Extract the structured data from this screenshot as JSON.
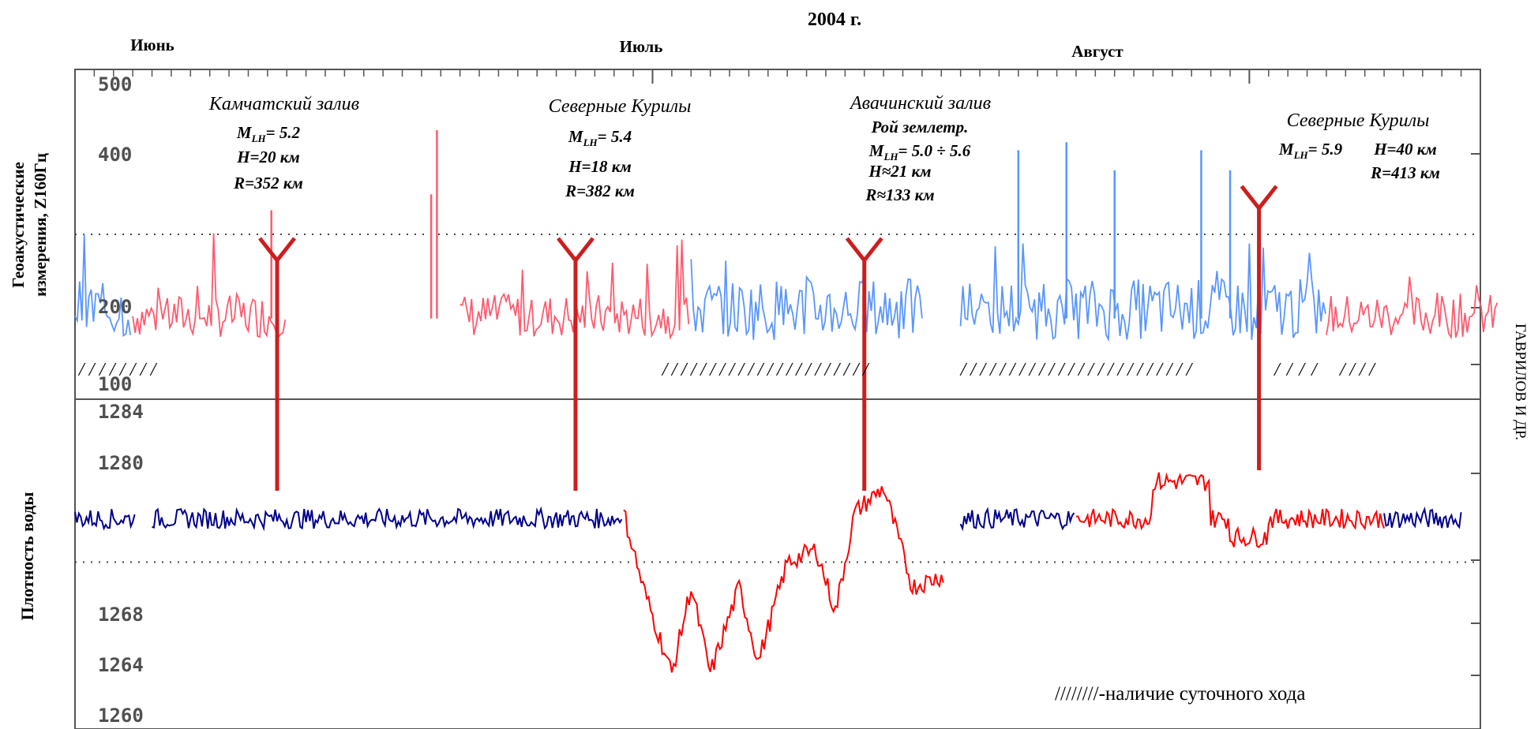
{
  "chart_data": {
    "type": "line",
    "title": "2004 г.",
    "months": [
      "Июнь",
      "Июль",
      "Август"
    ],
    "top_panel": {
      "ylabel_lines": [
        "Геоакустические",
        "измерения, Z160Гц"
      ],
      "y_ticks": [
        "500",
        "400",
        "200",
        "100"
      ],
      "ylim": [
        100,
        500
      ],
      "reference_level": 300,
      "series": [
        {
          "color": "#ff5a6e",
          "baseline": 190,
          "amplitude": 25,
          "segments": [
            [
              3,
              11
            ],
            [
              20,
              32
            ],
            [
              65,
              74
            ]
          ]
        },
        {
          "color": "#5a96ff",
          "baseline": 195,
          "amplitude": 35,
          "segments": [
            [
              0,
              3
            ],
            [
              32,
              44
            ],
            [
              46,
              65
            ]
          ]
        }
      ],
      "spikes": [
        {
          "day": 18.5,
          "value": 350
        },
        {
          "day": 18.8,
          "value": 430
        },
        {
          "day": 10.2,
          "value": 330
        },
        {
          "day": 49.0,
          "value": 405
        },
        {
          "day": 51.5,
          "value": 415
        },
        {
          "day": 54.0,
          "value": 380
        },
        {
          "day": 58.5,
          "value": 405
        },
        {
          "day": 60.0,
          "value": 380
        }
      ],
      "diurnal_marks": [
        {
          "text": "////////",
          "from_day": 0.2,
          "to_day": 4.2
        },
        {
          "text": "//////////////////////",
          "from_day": 30.5,
          "to_day": 41.2
        },
        {
          "text": "////////////////////////",
          "from_day": 46.0,
          "to_day": 58.0
        },
        {
          "text": "////",
          "from_day": 62.3,
          "to_day": 64.5
        },
        {
          "text": "////",
          "from_day": 65.7,
          "to_day": 67.5
        }
      ]
    },
    "bottom_panel": {
      "ylabel": "Плотность воды",
      "y_ticks": [
        "1284",
        "1280",
        "1268",
        "1264",
        "1260"
      ],
      "ylim": [
        1259,
        1285
      ],
      "reference_level": 1272,
      "series": [
        {
          "color": "#00008b",
          "segments": [
            [
              0,
              3.2
            ],
            [
              4,
              28.5
            ],
            [
              46,
              52
            ],
            [
              68,
              72
            ]
          ]
        },
        {
          "color": "#ff0000",
          "segments": [
            [
              28.5,
              45.2
            ],
            [
              52,
              68
            ]
          ]
        }
      ],
      "legend_text": "////////-наличие суточного хода"
    },
    "events": [
      {
        "day": 10.5,
        "region": "Камчатский залив",
        "extra": "",
        "M": "5.2",
        "H": "H=20 км",
        "R": "R=352 км"
      },
      {
        "day": 26.0,
        "region": "Северные Курилы",
        "extra": "",
        "M": "5.4",
        "H": "H=18 км",
        "R": "R=382 км"
      },
      {
        "day": 41.0,
        "region": "Авачинский залив",
        "extra": "Рой землетр.",
        "M": "5.0 ÷ 5.6",
        "H": "H≈21 км",
        "R": "R≈133 км"
      },
      {
        "day": 61.5,
        "region": "Северные Курилы",
        "extra": "",
        "M": "5.9",
        "H": "H=40 км",
        "R": "R=413 км"
      }
    ],
    "side_label": "ГАВРИЛОВ И ДР."
  }
}
